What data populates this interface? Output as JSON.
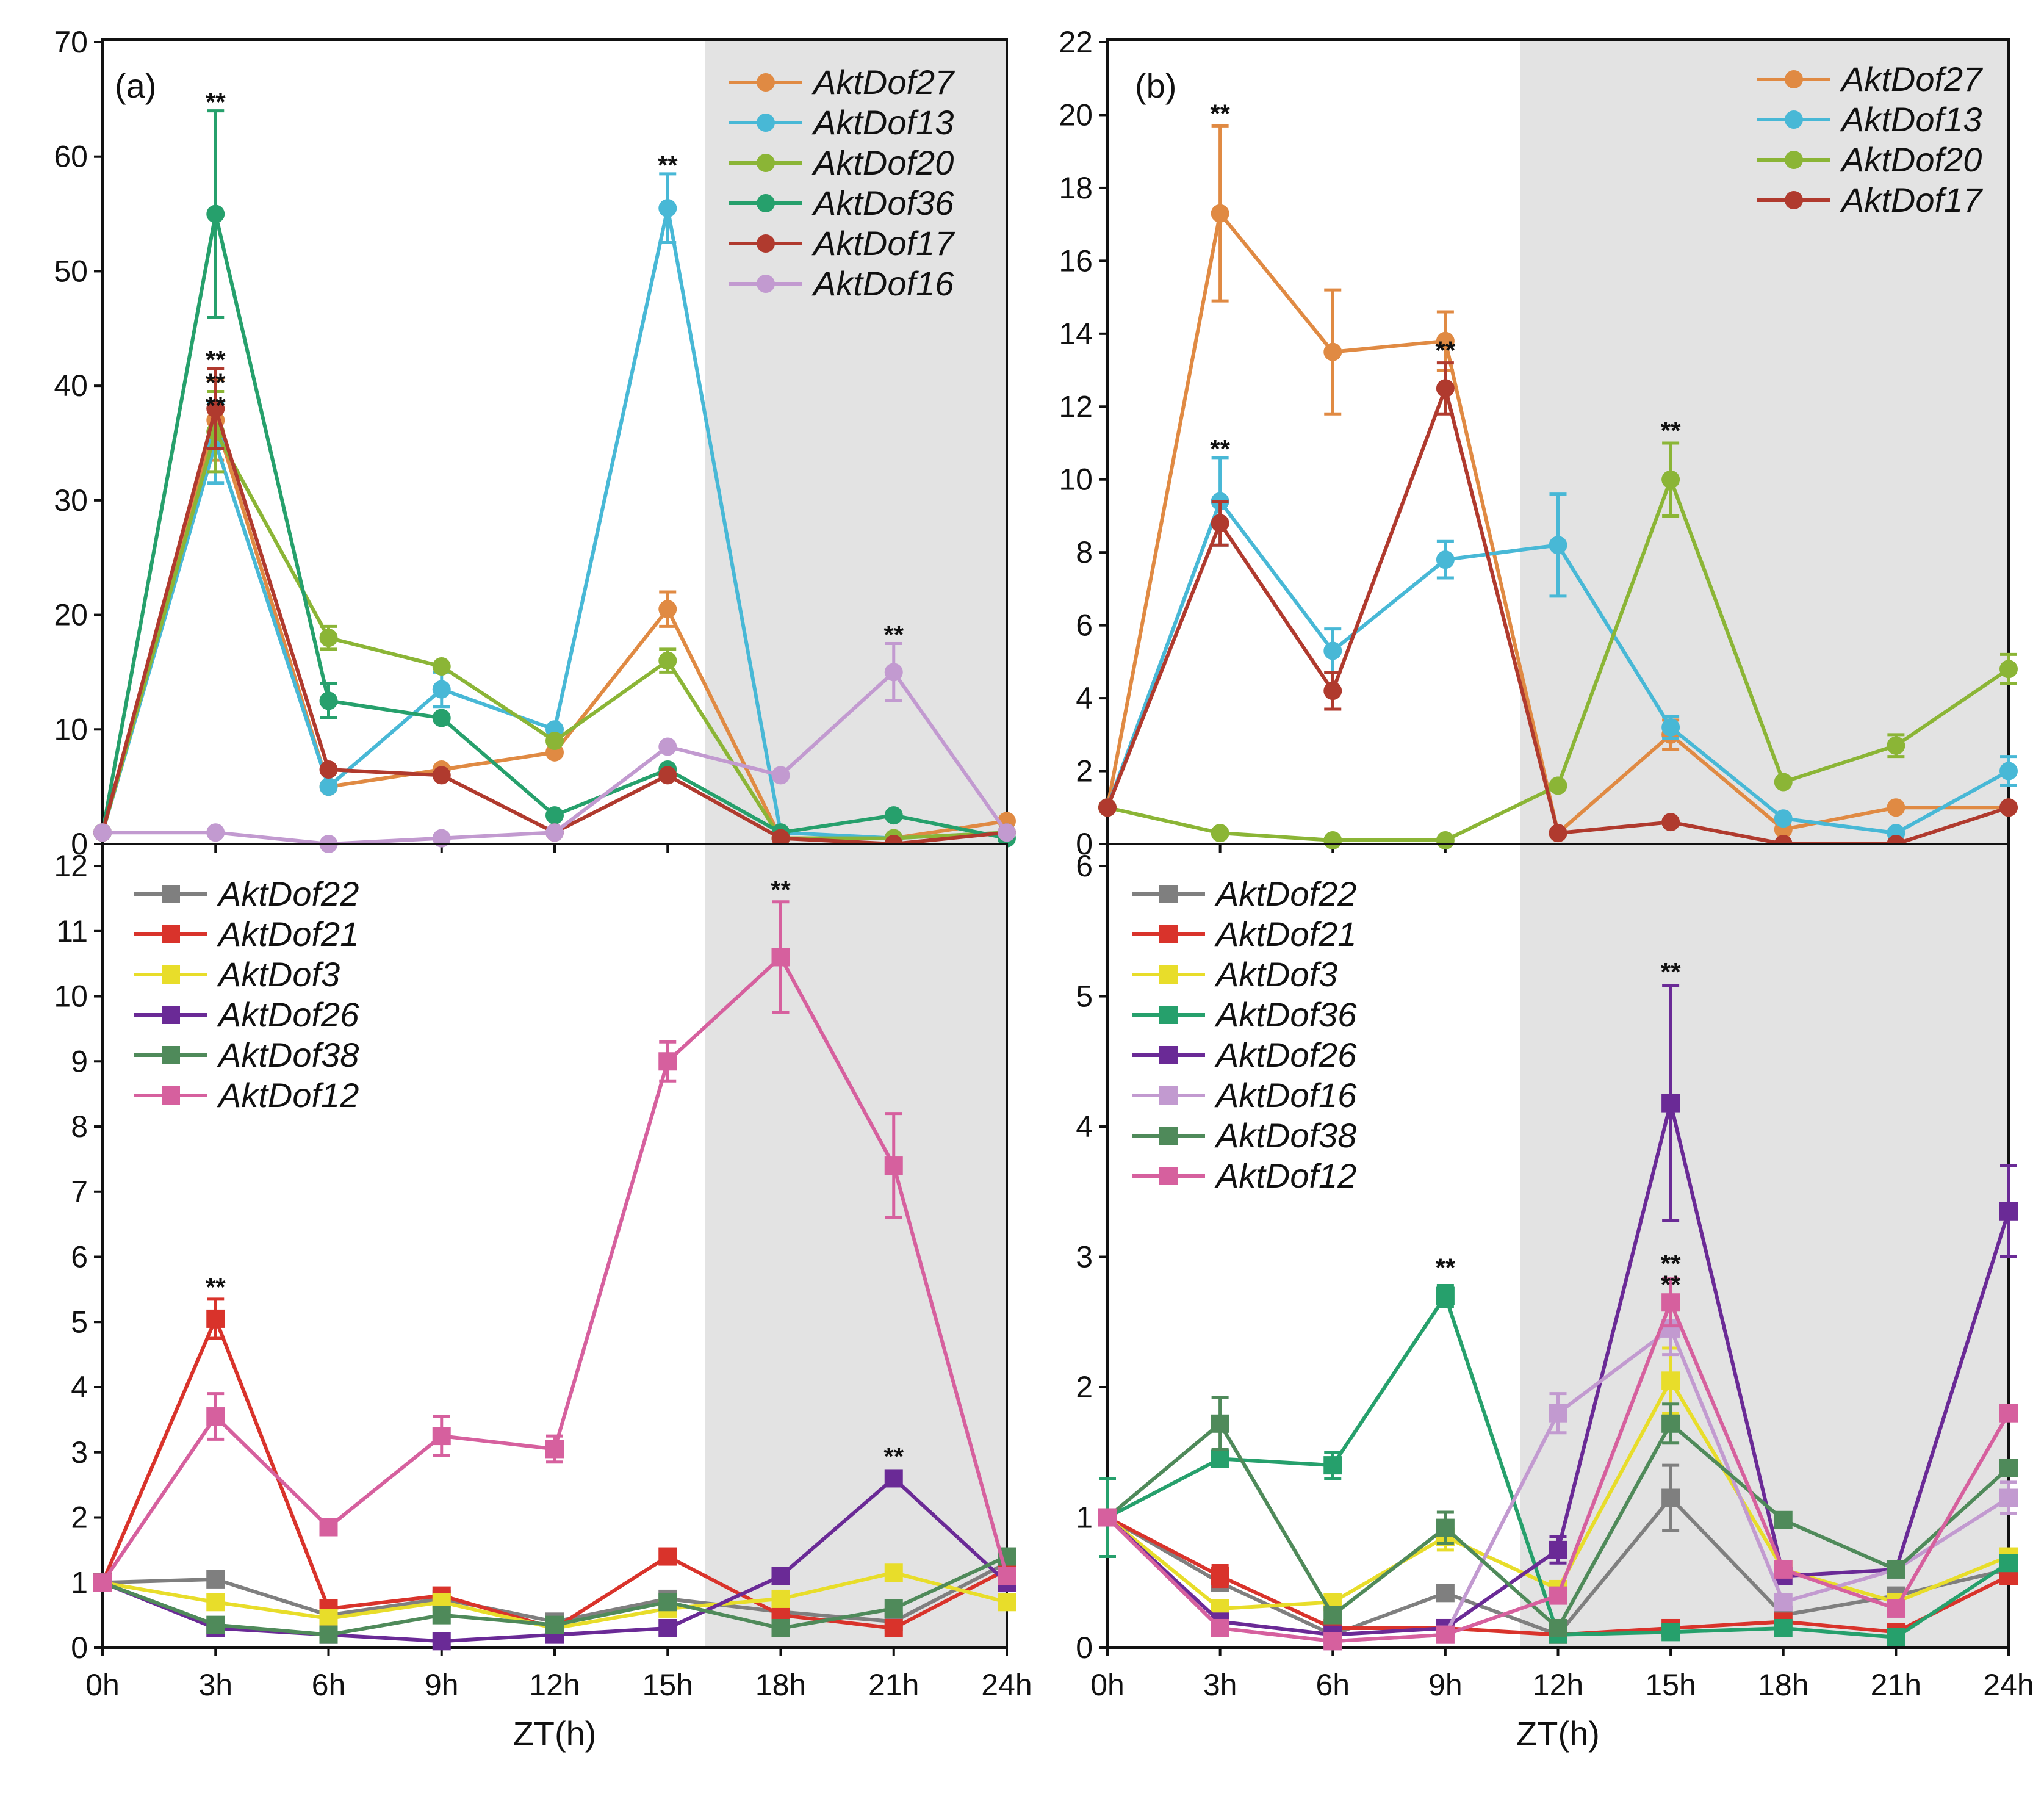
{
  "figure": {
    "x_tick_labels": [
      "0h",
      "3h",
      "6h",
      "9h",
      "12h",
      "15h",
      "18h",
      "21h",
      "24h"
    ],
    "x_axis_title": "ZT(h)",
    "dark_phase_label": "dark"
  },
  "chart_data": [
    {
      "id": "a-top",
      "type": "line",
      "panel_label": "(a)",
      "title": "",
      "xlabel": "",
      "ylabel": "",
      "x": [
        0,
        3,
        6,
        9,
        12,
        15,
        18,
        21,
        24
      ],
      "ylim": [
        0,
        70
      ],
      "yticks": [
        0,
        10,
        20,
        30,
        40,
        50,
        60,
        70
      ],
      "shaded_from_x": 16,
      "marker": "circle",
      "legend_position": "top-right",
      "series": [
        {
          "name": "AktDof27",
          "color": "#e08a43",
          "values": [
            1,
            37,
            5,
            6.5,
            8,
            20.5,
            0.5,
            0.5,
            2
          ],
          "errors": [
            0,
            3.5,
            0,
            0,
            0,
            1.5,
            0,
            0,
            0
          ]
        },
        {
          "name": "AktDof13",
          "color": "#48b8d6",
          "values": [
            1,
            35,
            5,
            13.5,
            10,
            55.5,
            1,
            0.5,
            1
          ],
          "errors": [
            0,
            3.5,
            0,
            1.5,
            0,
            3,
            0,
            0,
            0
          ]
        },
        {
          "name": "AktDof20",
          "color": "#8bb536",
          "values": [
            1,
            36,
            18,
            15.5,
            9,
            16,
            0.5,
            0.5,
            1
          ],
          "errors": [
            0,
            3.5,
            1,
            0,
            0,
            1,
            0,
            0,
            0
          ]
        },
        {
          "name": "AktDof36",
          "color": "#26a06c",
          "values": [
            1,
            55,
            12.5,
            11,
            2.5,
            6.5,
            1,
            2.5,
            0.5
          ],
          "errors": [
            0,
            9,
            1.5,
            0,
            0,
            0,
            0,
            0,
            0
          ]
        },
        {
          "name": "AktDof17",
          "color": "#b03a2e",
          "values": [
            1,
            38,
            6.5,
            6,
            1,
            6,
            0.5,
            0,
            1
          ],
          "errors": [
            0,
            3.5,
            0,
            0,
            0,
            0,
            0,
            0,
            0
          ]
        },
        {
          "name": "AktDof16",
          "color": "#c29ad0",
          "values": [
            1,
            1,
            0,
            0.5,
            1,
            8.5,
            6,
            15,
            1
          ],
          "errors": [
            0,
            0,
            0,
            0,
            0,
            0,
            0,
            2.5,
            0
          ]
        }
      ],
      "annotations": [
        {
          "x": 3,
          "y": 64,
          "text": "**"
        },
        {
          "x": 3,
          "y": 41.5,
          "text": "**"
        },
        {
          "x": 3,
          "y": 39.5,
          "text": "**"
        },
        {
          "x": 3,
          "y": 37.5,
          "text": "**"
        },
        {
          "x": 15,
          "y": 58.5,
          "text": "**"
        },
        {
          "x": 21,
          "y": 17.5,
          "text": "**"
        }
      ]
    },
    {
      "id": "b-top",
      "type": "line",
      "panel_label": "(b)",
      "title": "",
      "xlabel": "",
      "ylabel": "",
      "x": [
        0,
        3,
        6,
        9,
        12,
        15,
        18,
        21,
        24
      ],
      "ylim": [
        0,
        22
      ],
      "yticks": [
        0,
        2,
        4,
        6,
        8,
        10,
        12,
        14,
        16,
        18,
        20,
        22
      ],
      "shaded_from_x": 11,
      "marker": "circle",
      "legend_position": "top-right",
      "series": [
        {
          "name": "AktDof27",
          "color": "#e08a43",
          "values": [
            1,
            17.3,
            13.5,
            13.8,
            0.3,
            3,
            0.4,
            1,
            1
          ],
          "errors": [
            0,
            2.4,
            1.7,
            0.8,
            0,
            0.4,
            0,
            0,
            0
          ]
        },
        {
          "name": "AktDof13",
          "color": "#48b8d6",
          "values": [
            1,
            9.4,
            5.3,
            7.8,
            8.2,
            3.2,
            0.7,
            0.3,
            2
          ],
          "errors": [
            0,
            1.2,
            0.6,
            0.5,
            1.4,
            0.3,
            0,
            0,
            0.4
          ]
        },
        {
          "name": "AktDof20",
          "color": "#8bb536",
          "values": [
            1,
            0.3,
            0.1,
            0.1,
            1.6,
            10,
            1.7,
            2.7,
            4.8
          ],
          "errors": [
            0,
            0,
            0,
            0,
            0,
            1,
            0,
            0.3,
            0.4
          ]
        },
        {
          "name": "AktDof17",
          "color": "#b03a2e",
          "values": [
            1,
            8.8,
            4.2,
            12.5,
            0.3,
            0.6,
            0,
            0,
            1
          ],
          "errors": [
            0,
            0.6,
            0.5,
            0.7,
            0,
            0,
            0,
            0,
            0
          ]
        }
      ],
      "annotations": [
        {
          "x": 3,
          "y": 19.8,
          "text": "**"
        },
        {
          "x": 3,
          "y": 10.6,
          "text": "**"
        },
        {
          "x": 9,
          "y": 13.3,
          "text": "**"
        },
        {
          "x": 15,
          "y": 11.1,
          "text": "**"
        }
      ]
    },
    {
      "id": "a-bottom",
      "type": "line",
      "panel_label": "",
      "title": "",
      "xlabel": "ZT(h)",
      "ylabel": "",
      "x": [
        0,
        3,
        6,
        9,
        12,
        15,
        18,
        21,
        24
      ],
      "ylim": [
        0,
        12.3
      ],
      "yticks": [
        0,
        1,
        2,
        3,
        4,
        5,
        6,
        7,
        8,
        9,
        10,
        11,
        12
      ],
      "shaded_from_x": 16,
      "marker": "square",
      "legend_position": "top-left",
      "series": [
        {
          "name": "AktDof22",
          "color": "#7f7f7f",
          "values": [
            1,
            1.05,
            0.5,
            0.75,
            0.4,
            0.75,
            0.55,
            0.4,
            1.3
          ],
          "errors": [
            0,
            0,
            0,
            0,
            0,
            0,
            0,
            0,
            0
          ]
        },
        {
          "name": "AktDof21",
          "color": "#d9332b",
          "values": [
            1,
            5.05,
            0.6,
            0.8,
            0.3,
            1.4,
            0.5,
            0.3,
            1.2
          ],
          "errors": [
            0,
            0.3,
            0,
            0,
            0,
            0,
            0,
            0,
            0
          ]
        },
        {
          "name": "AktDof3",
          "color": "#e8dd2a",
          "values": [
            1,
            0.7,
            0.45,
            0.7,
            0.3,
            0.6,
            0.75,
            1.15,
            0.7
          ],
          "errors": [
            0,
            0,
            0,
            0,
            0,
            0,
            0,
            0,
            0
          ]
        },
        {
          "name": "AktDof26",
          "color": "#6a2a96",
          "values": [
            1,
            0.3,
            0.2,
            0.1,
            0.2,
            0.3,
            1.1,
            2.6,
            1.0
          ],
          "errors": [
            0,
            0,
            0,
            0,
            0,
            0,
            0,
            0,
            0
          ]
        },
        {
          "name": "AktDof38",
          "color": "#4f8a5a",
          "values": [
            1,
            0.35,
            0.2,
            0.5,
            0.35,
            0.7,
            0.3,
            0.6,
            1.4
          ],
          "errors": [
            0,
            0,
            0,
            0,
            0,
            0,
            0,
            0,
            0
          ]
        },
        {
          "name": "AktDof12",
          "color": "#d6609e",
          "values": [
            1,
            3.55,
            1.85,
            3.25,
            3.05,
            9.0,
            10.6,
            7.4,
            1.1
          ],
          "errors": [
            0,
            0.35,
            0,
            0.3,
            0.2,
            0.3,
            0.85,
            0.8,
            0
          ]
        }
      ],
      "annotations": [
        {
          "x": 3,
          "y": 5.4,
          "text": "**"
        },
        {
          "x": 18,
          "y": 11.5,
          "text": "**"
        },
        {
          "x": 21,
          "y": 2.8,
          "text": "**"
        }
      ]
    },
    {
      "id": "b-bottom",
      "type": "line",
      "panel_label": "",
      "title": "",
      "xlabel": "ZT(h)",
      "ylabel": "",
      "x": [
        0,
        3,
        6,
        9,
        12,
        15,
        18,
        21,
        24
      ],
      "ylim": [
        0,
        6.15
      ],
      "yticks": [
        0,
        1,
        2,
        3,
        4,
        5,
        6
      ],
      "shaded_from_x": 11,
      "marker": "square",
      "legend_position": "top-left",
      "series": [
        {
          "name": "AktDof22",
          "color": "#7f7f7f",
          "values": [
            1,
            0.5,
            0.1,
            0.42,
            0.1,
            1.15,
            0.25,
            0.4,
            0.6
          ],
          "errors": [
            0,
            0,
            0,
            0,
            0,
            0.25,
            0,
            0,
            0
          ]
        },
        {
          "name": "AktDof21",
          "color": "#d9332b",
          "values": [
            1,
            0.55,
            0.15,
            0.15,
            0.1,
            0.15,
            0.2,
            0.12,
            0.55
          ],
          "errors": [
            0,
            0.08,
            0,
            0,
            0,
            0,
            0,
            0,
            0
          ]
        },
        {
          "name": "AktDof3",
          "color": "#e8dd2a",
          "values": [
            1,
            0.3,
            0.35,
            0.85,
            0.45,
            2.05,
            0.6,
            0.35,
            0.7
          ],
          "errors": [
            0,
            0,
            0,
            0.1,
            0,
            0.25,
            0,
            0,
            0
          ]
        },
        {
          "name": "AktDof36",
          "color": "#26a06c",
          "values": [
            1,
            1.45,
            1.4,
            2.7,
            0.1,
            0.12,
            0.15,
            0.08,
            0.65
          ],
          "errors": [
            0.3,
            0.05,
            0.1,
            0.08,
            0,
            0,
            0,
            0,
            0
          ]
        },
        {
          "name": "AktDof26",
          "color": "#6a2a96",
          "values": [
            1,
            0.2,
            0.1,
            0.15,
            0.75,
            4.18,
            0.55,
            0.6,
            3.35
          ],
          "errors": [
            0,
            0,
            0,
            0,
            0.1,
            0.9,
            0,
            0,
            0.35
          ]
        },
        {
          "name": "AktDof16",
          "color": "#c29ad0",
          "values": [
            1,
            0.15,
            0.05,
            0.1,
            1.8,
            2.45,
            0.35,
            0.6,
            1.15
          ],
          "errors": [
            0,
            0,
            0,
            0,
            0.15,
            0.2,
            0,
            0,
            0.12
          ]
        },
        {
          "name": "AktDof38",
          "color": "#4f8a5a",
          "values": [
            1,
            1.72,
            0.25,
            0.92,
            0.15,
            1.72,
            0.98,
            0.6,
            1.38
          ],
          "errors": [
            0,
            0.2,
            0,
            0.12,
            0,
            0.15,
            0,
            0,
            0
          ]
        },
        {
          "name": "AktDof12",
          "color": "#d6609e",
          "values": [
            1,
            0.15,
            0.05,
            0.1,
            0.4,
            2.65,
            0.6,
            0.3,
            1.8
          ],
          "errors": [
            0,
            0,
            0,
            0,
            0,
            0.18,
            0,
            0,
            0
          ]
        }
      ],
      "annotations": [
        {
          "x": 9,
          "y": 2.85,
          "text": "**"
        },
        {
          "x": 15,
          "y": 5.12,
          "text": "**"
        },
        {
          "x": 15,
          "y": 2.88,
          "text": "**"
        },
        {
          "x": 15,
          "y": 2.72,
          "text": "**"
        }
      ]
    }
  ]
}
